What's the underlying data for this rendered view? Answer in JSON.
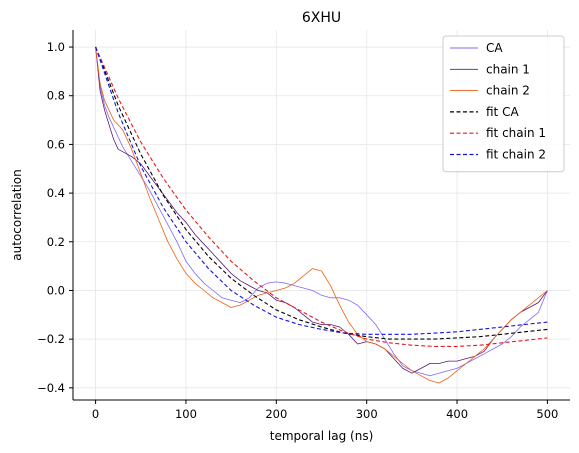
{
  "chart_data": {
    "type": "line",
    "title": "6XHU",
    "xlabel": "temporal lag (ns)",
    "ylabel": "autocorrelation",
    "xlim": [
      -25,
      525
    ],
    "ylim": [
      -0.45,
      1.07
    ],
    "xticks": [
      0,
      100,
      200,
      300,
      400,
      500
    ],
    "xtick_labels": [
      "0",
      "100",
      "200",
      "300",
      "400",
      "500"
    ],
    "yticks": [
      -0.4,
      -0.2,
      0.0,
      0.2,
      0.4,
      0.6,
      0.8,
      1.0
    ],
    "ytick_labels": [
      "−0.4",
      "−0.2",
      "0.0",
      "0.2",
      "0.4",
      "0.6",
      "0.8",
      "1.0"
    ],
    "grid": true,
    "legend_position": "top-right",
    "series": [
      {
        "name": "CA",
        "color": "#7b6cf6",
        "style": "solid",
        "width": 0.8,
        "x": [
          0,
          5,
          10,
          15,
          20,
          25,
          30,
          40,
          50,
          60,
          70,
          80,
          90,
          100,
          110,
          120,
          130,
          140,
          150,
          160,
          170,
          180,
          190,
          200,
          210,
          220,
          230,
          240,
          250,
          260,
          270,
          280,
          290,
          300,
          310,
          320,
          330,
          340,
          350,
          360,
          370,
          380,
          390,
          400,
          410,
          420,
          430,
          440,
          450,
          460,
          470,
          480,
          490,
          500
        ],
        "y": [
          1.0,
          0.84,
          0.76,
          0.71,
          0.67,
          0.63,
          0.59,
          0.53,
          0.47,
          0.41,
          0.34,
          0.27,
          0.2,
          0.12,
          0.07,
          0.03,
          0.0,
          -0.03,
          -0.04,
          -0.05,
          -0.03,
          0.01,
          0.03,
          0.035,
          0.03,
          0.02,
          0.01,
          0.0,
          -0.02,
          -0.03,
          -0.03,
          -0.04,
          -0.06,
          -0.1,
          -0.14,
          -0.2,
          -0.26,
          -0.31,
          -0.33,
          -0.34,
          -0.35,
          -0.34,
          -0.33,
          -0.32,
          -0.3,
          -0.28,
          -0.26,
          -0.24,
          -0.22,
          -0.19,
          -0.15,
          -0.12,
          -0.09,
          0.0
        ]
      },
      {
        "name": "chain 1",
        "color": "#5a1a7a",
        "style": "solid",
        "width": 0.8,
        "x": [
          0,
          5,
          10,
          15,
          20,
          25,
          30,
          40,
          50,
          60,
          70,
          80,
          90,
          100,
          110,
          120,
          130,
          140,
          150,
          160,
          170,
          180,
          190,
          200,
          210,
          220,
          230,
          240,
          250,
          260,
          270,
          280,
          290,
          300,
          310,
          320,
          330,
          340,
          350,
          360,
          370,
          380,
          390,
          400,
          410,
          420,
          430,
          440,
          450,
          460,
          470,
          480,
          490,
          500
        ],
        "y": [
          1.0,
          0.82,
          0.74,
          0.68,
          0.62,
          0.58,
          0.57,
          0.55,
          0.52,
          0.47,
          0.42,
          0.37,
          0.32,
          0.28,
          0.23,
          0.19,
          0.15,
          0.11,
          0.07,
          0.04,
          0.02,
          0.0,
          -0.01,
          -0.04,
          -0.05,
          -0.07,
          -0.1,
          -0.13,
          -0.14,
          -0.14,
          -0.15,
          -0.18,
          -0.22,
          -0.21,
          -0.22,
          -0.24,
          -0.28,
          -0.32,
          -0.34,
          -0.32,
          -0.3,
          -0.3,
          -0.29,
          -0.29,
          -0.28,
          -0.27,
          -0.25,
          -0.2,
          -0.16,
          -0.12,
          -0.09,
          -0.07,
          -0.05,
          0.0
        ]
      },
      {
        "name": "chain 2",
        "color": "#f06010",
        "style": "solid",
        "width": 0.8,
        "x": [
          0,
          5,
          10,
          15,
          20,
          25,
          30,
          40,
          50,
          60,
          70,
          80,
          90,
          100,
          110,
          120,
          130,
          140,
          150,
          160,
          170,
          180,
          190,
          200,
          210,
          220,
          230,
          240,
          250,
          260,
          270,
          280,
          290,
          300,
          310,
          320,
          330,
          340,
          350,
          360,
          370,
          380,
          390,
          400,
          410,
          420,
          430,
          440,
          450,
          460,
          470,
          480,
          490,
          500
        ],
        "y": [
          1.0,
          0.85,
          0.78,
          0.74,
          0.7,
          0.68,
          0.66,
          0.58,
          0.48,
          0.38,
          0.29,
          0.2,
          0.13,
          0.07,
          0.03,
          0.0,
          -0.03,
          -0.05,
          -0.07,
          -0.06,
          -0.04,
          -0.02,
          -0.01,
          0.0,
          0.01,
          0.03,
          0.06,
          0.09,
          0.08,
          0.02,
          -0.06,
          -0.13,
          -0.18,
          -0.21,
          -0.22,
          -0.24,
          -0.27,
          -0.3,
          -0.33,
          -0.35,
          -0.37,
          -0.38,
          -0.36,
          -0.33,
          -0.3,
          -0.27,
          -0.24,
          -0.2,
          -0.16,
          -0.12,
          -0.09,
          -0.06,
          -0.03,
          0.0
        ]
      },
      {
        "name": "fit CA",
        "color": "#000000",
        "style": "dashed",
        "width": 1.1,
        "x": [
          0,
          25,
          50,
          75,
          100,
          125,
          150,
          175,
          200,
          225,
          250,
          275,
          300,
          325,
          350,
          375,
          400,
          425,
          450,
          475,
          500
        ],
        "y": [
          1.0,
          0.76,
          0.56,
          0.39,
          0.25,
          0.14,
          0.05,
          -0.02,
          -0.08,
          -0.12,
          -0.15,
          -0.175,
          -0.19,
          -0.2,
          -0.2,
          -0.2,
          -0.195,
          -0.19,
          -0.18,
          -0.17,
          -0.16
        ]
      },
      {
        "name": "fit chain 1",
        "color": "#e51a1a",
        "style": "dashed",
        "width": 1.1,
        "x": [
          0,
          25,
          50,
          75,
          100,
          125,
          150,
          175,
          200,
          225,
          250,
          275,
          300,
          325,
          350,
          375,
          400,
          425,
          450,
          475,
          500
        ],
        "y": [
          1.0,
          0.79,
          0.61,
          0.46,
          0.33,
          0.22,
          0.12,
          0.04,
          -0.03,
          -0.08,
          -0.13,
          -0.17,
          -0.2,
          -0.215,
          -0.225,
          -0.23,
          -0.23,
          -0.225,
          -0.215,
          -0.205,
          -0.195
        ]
      },
      {
        "name": "fit chain 2",
        "color": "#1414d8",
        "style": "dashed",
        "width": 1.1,
        "x": [
          0,
          25,
          50,
          75,
          100,
          125,
          150,
          175,
          200,
          225,
          250,
          275,
          300,
          325,
          350,
          375,
          400,
          425,
          450,
          475,
          500
        ],
        "y": [
          1.0,
          0.73,
          0.51,
          0.34,
          0.2,
          0.09,
          0.0,
          -0.06,
          -0.11,
          -0.14,
          -0.16,
          -0.175,
          -0.18,
          -0.18,
          -0.18,
          -0.175,
          -0.17,
          -0.16,
          -0.15,
          -0.14,
          -0.13
        ]
      }
    ]
  }
}
